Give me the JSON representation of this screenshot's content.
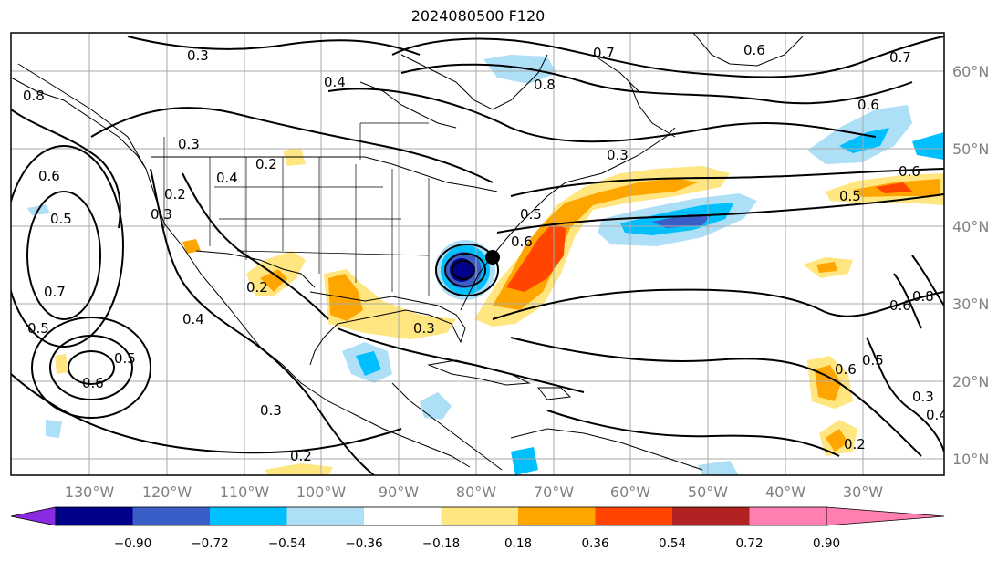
{
  "title": "2024080500 F120",
  "map": {
    "lon_labels": [
      "130°W",
      "120°W",
      "110°W",
      "100°W",
      "90°W",
      "80°W",
      "70°W",
      "60°W",
      "50°W",
      "40°W",
      "30°W"
    ],
    "lat_labels": [
      "60°N",
      "50°N",
      "40°N",
      "30°N",
      "20°N",
      "10°N"
    ],
    "contour_labels": [
      "0.3",
      "0.4",
      "0.7",
      "0.8",
      "0.6",
      "0.7",
      "0.6",
      "0.6",
      "0.5",
      "0.3",
      "0.2",
      "0.4",
      "0.2",
      "0.5",
      "0.3",
      "0.6",
      "0.8",
      "0.6",
      "0.5",
      "0.7",
      "0.5",
      "0.4",
      "0.2",
      "0.3",
      "0.3",
      "0.2",
      "0.6",
      "0.3",
      "0.5",
      "0.6",
      "0.8",
      "0.6",
      "0.5",
      "0.2",
      "0.3",
      "0.4"
    ],
    "storm_marker": "black-dot"
  },
  "colorbar": {
    "labels": [
      "−0.90",
      "−0.72",
      "−0.54",
      "−0.36",
      "−0.18",
      "0.18",
      "0.36",
      "0.54",
      "0.72",
      "0.90"
    ],
    "colors": [
      "#8a2be2",
      "#00008b",
      "#3a5ec8",
      "#00bfff",
      "#addff7",
      "#ffffff",
      "#ffe680",
      "#ffa500",
      "#ff4500",
      "#b22222",
      "#ff80b0"
    ]
  }
}
